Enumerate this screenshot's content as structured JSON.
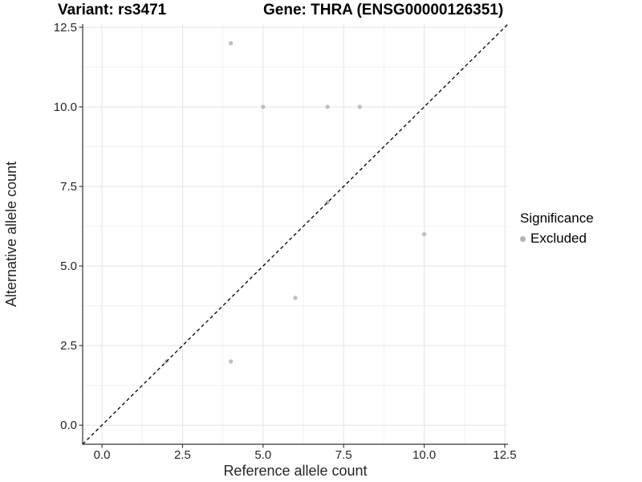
{
  "chart_data": {
    "type": "scatter",
    "title_left": "Variant: rs3471",
    "title_right": "Gene: THRA (ENSG00000126351)",
    "xlabel": "Reference allele count",
    "ylabel": "Alternative allele count",
    "xlim": [
      -0.6,
      12.6
    ],
    "ylim": [
      -0.6,
      12.6
    ],
    "major_ticks": [
      0,
      2.5,
      5,
      7.5,
      10,
      12.5
    ],
    "tick_labels": [
      "0.0",
      "2.5",
      "5.0",
      "7.5",
      "10.0",
      "12.5"
    ],
    "minor_gridlines": [
      1.25,
      3.75,
      6.25,
      8.75,
      11.25
    ],
    "grid": "major+minor",
    "series": [
      {
        "name": "Excluded",
        "color": "#bebebe",
        "points": [
          [
            4,
            12
          ],
          [
            5,
            10
          ],
          [
            7,
            10
          ],
          [
            8,
            10
          ],
          [
            7,
            7
          ],
          [
            10,
            6
          ],
          [
            6,
            4
          ],
          [
            2,
            2
          ],
          [
            4,
            2
          ]
        ]
      }
    ],
    "reference_line": {
      "kind": "identity y=x",
      "style": "dashed",
      "color": "#000000"
    },
    "legend": {
      "title": "Significance",
      "position": "right",
      "entries": [
        {
          "label": "Excluded",
          "color": "#b3b3b3"
        }
      ]
    }
  },
  "style": {
    "background": "#ffffff",
    "grid_major_color": "#e4e4e4",
    "grid_minor_color": "#f1f1f1",
    "axis_color": "#333333",
    "tick_text_color": "#262626",
    "title_text_color": "#000000",
    "point_color": "#bebebe"
  }
}
